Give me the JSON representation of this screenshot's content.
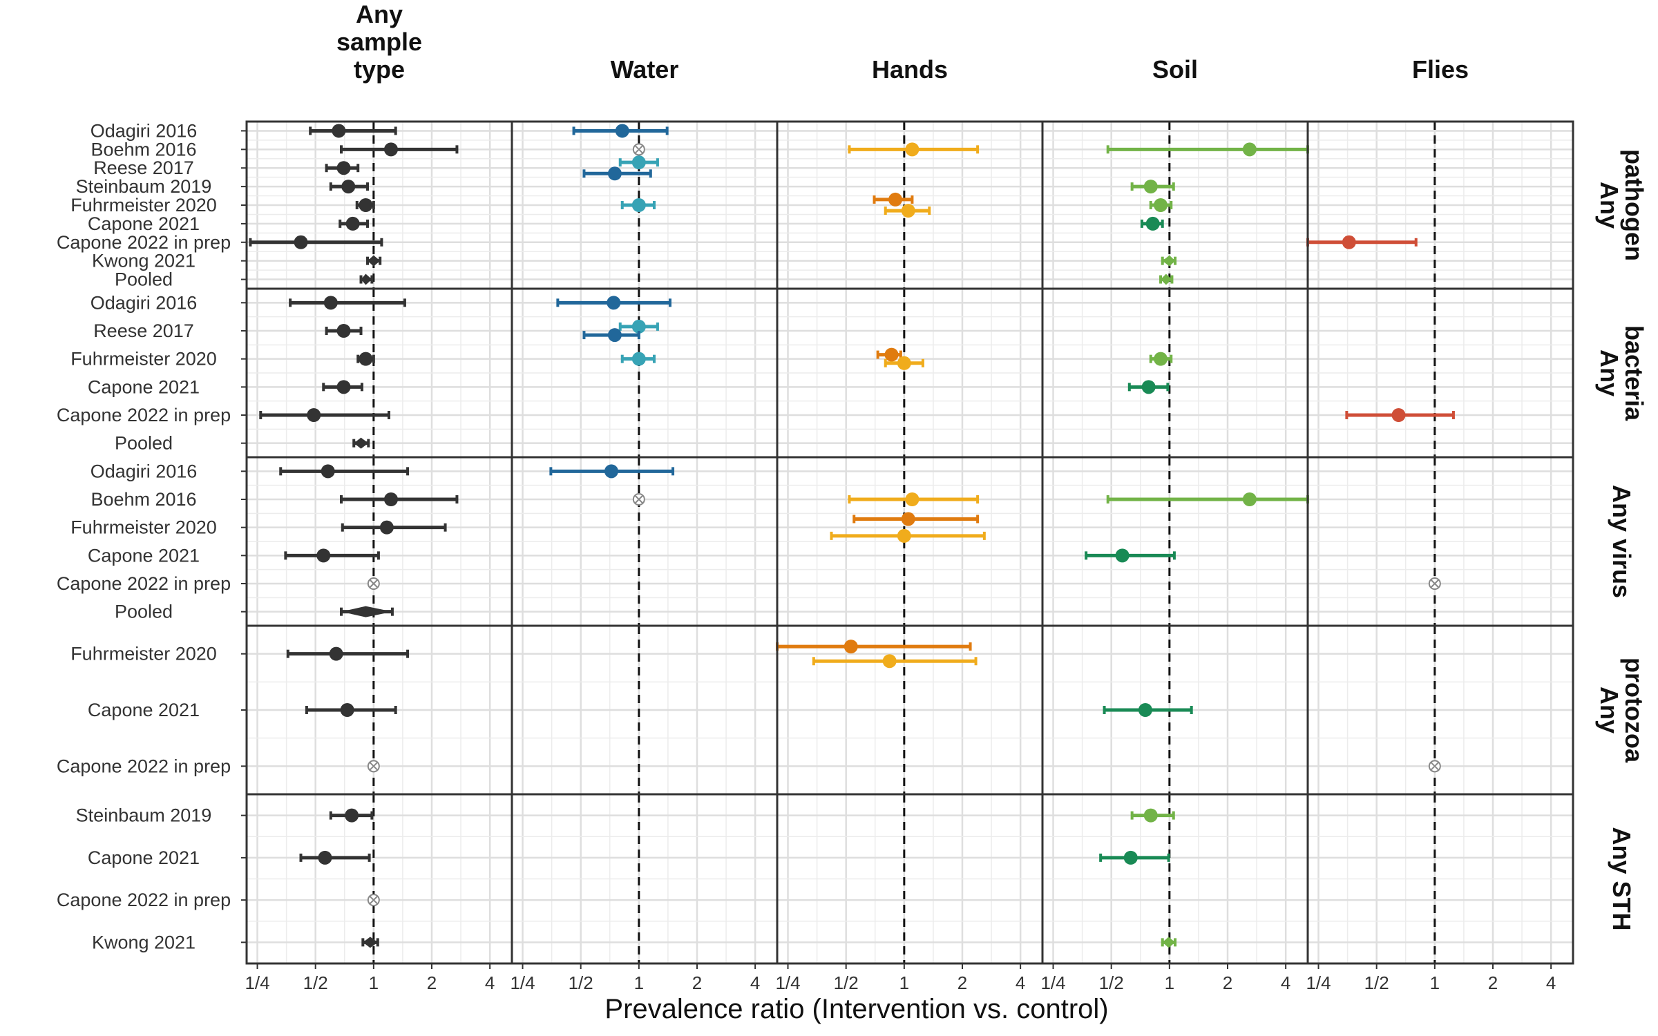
{
  "chart_data": {
    "type": "forest",
    "xlabel": "Prevalence ratio (Intervention vs. control)",
    "x_scale": "log2",
    "xlim": [
      0.22,
      5.2
    ],
    "x_ticks": [
      {
        "value": 0.25,
        "label": "1/4"
      },
      {
        "value": 0.5,
        "label": "1/2"
      },
      {
        "value": 1,
        "label": "1"
      },
      {
        "value": 2,
        "label": "2"
      },
      {
        "value": 4,
        "label": "4"
      }
    ],
    "reference_line": 1,
    "columns": [
      {
        "key": "any",
        "title": [
          "Any",
          "sample",
          "type"
        ]
      },
      {
        "key": "water",
        "title": [
          "Water"
        ]
      },
      {
        "key": "hands",
        "title": [
          "Hands"
        ]
      },
      {
        "key": "soil",
        "title": [
          "Soil"
        ]
      },
      {
        "key": "flies",
        "title": [
          "Flies"
        ]
      }
    ],
    "rows": [
      {
        "title": [
          "Any",
          "pathogen"
        ],
        "studies": [
          "Odagiri 2016",
          "Boehm 2016",
          "Reese 2017",
          "Steinbaum 2019",
          "Fuhrmeister 2020",
          "Capone 2021",
          "Capone 2022 in prep",
          "Kwong 2021",
          "Pooled"
        ],
        "points": [
          {
            "col": "any",
            "study": 0,
            "est": 0.66,
            "lo": 0.47,
            "hi": 1.3,
            "color": "#333333"
          },
          {
            "col": "any",
            "study": 1,
            "est": 1.23,
            "lo": 0.68,
            "hi": 2.7,
            "color": "#333333"
          },
          {
            "col": "any",
            "study": 2,
            "est": 0.7,
            "lo": 0.57,
            "hi": 0.83,
            "color": "#333333"
          },
          {
            "col": "any",
            "study": 3,
            "est": 0.74,
            "lo": 0.6,
            "hi": 0.93,
            "color": "#333333"
          },
          {
            "col": "any",
            "study": 4,
            "est": 0.91,
            "lo": 0.82,
            "hi": 1.0,
            "color": "#333333"
          },
          {
            "col": "any",
            "study": 5,
            "est": 0.78,
            "lo": 0.67,
            "hi": 0.93,
            "color": "#333333"
          },
          {
            "col": "any",
            "study": 6,
            "est": 0.42,
            "lo": 0.23,
            "hi": 1.1,
            "color": "#333333"
          },
          {
            "col": "any",
            "study": 7,
            "est": 1.0,
            "lo": 0.93,
            "hi": 1.08,
            "color": "#333333",
            "shape": "diamond"
          },
          {
            "col": "any",
            "study": 8,
            "est": 0.91,
            "lo": 0.86,
            "hi": 0.98,
            "color": "#333333",
            "shape": "diamond"
          },
          {
            "col": "water",
            "study": 0,
            "est": 0.82,
            "lo": 0.46,
            "hi": 1.4,
            "color": "#21679a"
          },
          {
            "col": "water",
            "study": 1,
            "est": 1.0,
            "color": "#999999",
            "shape": "null"
          },
          {
            "col": "water",
            "study": 2,
            "est": 1.0,
            "lo": 0.8,
            "hi": 1.25,
            "color": "#37a3b5",
            "offset": -0.3
          },
          {
            "col": "water",
            "study": 2,
            "est": 0.75,
            "lo": 0.52,
            "hi": 1.15,
            "color": "#21679a",
            "offset": 0.3
          },
          {
            "col": "water",
            "study": 4,
            "est": 1.0,
            "lo": 0.82,
            "hi": 1.2,
            "color": "#37a3b5"
          },
          {
            "col": "hands",
            "study": 1,
            "est": 1.1,
            "lo": 0.52,
            "hi": 2.4,
            "color": "#f0ac1c"
          },
          {
            "col": "hands",
            "study": 4,
            "est": 0.9,
            "lo": 0.7,
            "hi": 1.1,
            "color": "#e07b0f",
            "offset": -0.3
          },
          {
            "col": "hands",
            "study": 4,
            "est": 1.05,
            "lo": 0.8,
            "hi": 1.35,
            "color": "#f0ac1c",
            "offset": 0.3
          },
          {
            "col": "soil",
            "study": 1,
            "est": 2.6,
            "lo": 0.48,
            "hi": 5.2,
            "color": "#72b347"
          },
          {
            "col": "soil",
            "study": 3,
            "est": 0.8,
            "lo": 0.64,
            "hi": 1.05,
            "color": "#72b347"
          },
          {
            "col": "soil",
            "study": 4,
            "est": 0.9,
            "lo": 0.8,
            "hi": 1.02,
            "color": "#72b347"
          },
          {
            "col": "soil",
            "study": 5,
            "est": 0.82,
            "lo": 0.72,
            "hi": 0.92,
            "color": "#198a55"
          },
          {
            "col": "soil",
            "study": 7,
            "est": 1.0,
            "lo": 0.92,
            "hi": 1.07,
            "color": "#72b347",
            "shape": "diamond"
          },
          {
            "col": "soil",
            "study": 8,
            "est": 0.96,
            "lo": 0.9,
            "hi": 1.03,
            "color": "#72b347",
            "shape": "diamond"
          },
          {
            "col": "flies",
            "study": 6,
            "est": 0.36,
            "lo": 0.22,
            "hi": 0.8,
            "color": "#cf4e37"
          }
        ]
      },
      {
        "title": [
          "Any",
          "bacteria"
        ],
        "studies": [
          "Odagiri 2016",
          "Reese 2017",
          "Fuhrmeister 2020",
          "Capone 2021",
          "Capone 2022 in prep",
          "Pooled"
        ],
        "points": [
          {
            "col": "any",
            "study": 0,
            "est": 0.6,
            "lo": 0.37,
            "hi": 1.45,
            "color": "#333333"
          },
          {
            "col": "any",
            "study": 1,
            "est": 0.7,
            "lo": 0.57,
            "hi": 0.86,
            "color": "#333333"
          },
          {
            "col": "any",
            "study": 2,
            "est": 0.91,
            "lo": 0.83,
            "hi": 1.0,
            "color": "#333333"
          },
          {
            "col": "any",
            "study": 3,
            "est": 0.7,
            "lo": 0.55,
            "hi": 0.87,
            "color": "#333333"
          },
          {
            "col": "any",
            "study": 4,
            "est": 0.49,
            "lo": 0.26,
            "hi": 1.2,
            "color": "#333333"
          },
          {
            "col": "any",
            "study": 5,
            "est": 0.86,
            "lo": 0.79,
            "hi": 0.94,
            "color": "#333333",
            "shape": "diamond"
          },
          {
            "col": "water",
            "study": 0,
            "est": 0.74,
            "lo": 0.38,
            "hi": 1.45,
            "color": "#21679a"
          },
          {
            "col": "water",
            "study": 1,
            "est": 1.0,
            "lo": 0.8,
            "hi": 1.25,
            "color": "#37a3b5",
            "offset": -0.15
          },
          {
            "col": "water",
            "study": 1,
            "est": 0.75,
            "lo": 0.52,
            "hi": 1.0,
            "color": "#21679a",
            "offset": 0.15
          },
          {
            "col": "water",
            "study": 2,
            "est": 1.0,
            "lo": 0.82,
            "hi": 1.2,
            "color": "#37a3b5"
          },
          {
            "col": "hands",
            "study": 2,
            "est": 0.86,
            "lo": 0.73,
            "hi": 0.96,
            "color": "#e07b0f",
            "offset": -0.15
          },
          {
            "col": "hands",
            "study": 2,
            "est": 1.0,
            "lo": 0.8,
            "hi": 1.25,
            "color": "#f0ac1c",
            "offset": 0.15
          },
          {
            "col": "soil",
            "study": 2,
            "est": 0.9,
            "lo": 0.8,
            "hi": 1.02,
            "color": "#72b347"
          },
          {
            "col": "soil",
            "study": 3,
            "est": 0.78,
            "lo": 0.62,
            "hi": 0.98,
            "color": "#198a55"
          },
          {
            "col": "flies",
            "study": 4,
            "est": 0.65,
            "lo": 0.35,
            "hi": 1.25,
            "color": "#cf4e37"
          }
        ]
      },
      {
        "title": [
          "Any virus"
        ],
        "studies": [
          "Odagiri 2016",
          "Boehm 2016",
          "Fuhrmeister 2020",
          "Capone 2021",
          "Capone 2022 in prep",
          "Pooled"
        ],
        "points": [
          {
            "col": "any",
            "study": 0,
            "est": 0.58,
            "lo": 0.33,
            "hi": 1.5,
            "color": "#333333"
          },
          {
            "col": "any",
            "study": 1,
            "est": 1.23,
            "lo": 0.68,
            "hi": 2.7,
            "color": "#333333"
          },
          {
            "col": "any",
            "study": 2,
            "est": 1.17,
            "lo": 0.69,
            "hi": 2.35,
            "color": "#333333"
          },
          {
            "col": "any",
            "study": 3,
            "est": 0.55,
            "lo": 0.35,
            "hi": 1.06,
            "color": "#333333"
          },
          {
            "col": "any",
            "study": 4,
            "est": 1.0,
            "color": "#999999",
            "shape": "null"
          },
          {
            "col": "any",
            "study": 5,
            "est": 0.91,
            "lo": 0.68,
            "hi": 1.25,
            "color": "#333333",
            "shape": "diamond"
          },
          {
            "col": "water",
            "study": 0,
            "est": 0.72,
            "lo": 0.35,
            "hi": 1.5,
            "color": "#21679a"
          },
          {
            "col": "water",
            "study": 1,
            "est": 1.0,
            "color": "#999999",
            "shape": "null"
          },
          {
            "col": "hands",
            "study": 1,
            "est": 1.1,
            "lo": 0.52,
            "hi": 2.4,
            "color": "#f0ac1c"
          },
          {
            "col": "hands",
            "study": 2,
            "est": 1.05,
            "lo": 0.55,
            "hi": 2.4,
            "color": "#e07b0f",
            "offset": -0.3
          },
          {
            "col": "hands",
            "study": 2,
            "est": 1.0,
            "lo": 0.42,
            "hi": 2.6,
            "color": "#f0ac1c",
            "offset": 0.3
          },
          {
            "col": "soil",
            "study": 1,
            "est": 2.6,
            "lo": 0.48,
            "hi": 5.2,
            "color": "#72b347"
          },
          {
            "col": "soil",
            "study": 3,
            "est": 0.57,
            "lo": 0.37,
            "hi": 1.06,
            "color": "#198a55"
          },
          {
            "col": "flies",
            "study": 4,
            "est": 1.0,
            "color": "#999999",
            "shape": "null"
          }
        ]
      },
      {
        "title": [
          "Any",
          "protozoa"
        ],
        "studies": [
          "Fuhrmeister 2020",
          "Capone 2021",
          "Capone 2022 in prep"
        ],
        "points": [
          {
            "col": "any",
            "study": 0,
            "est": 0.64,
            "lo": 0.36,
            "hi": 1.5,
            "color": "#333333"
          },
          {
            "col": "any",
            "study": 1,
            "est": 0.73,
            "lo": 0.45,
            "hi": 1.3,
            "color": "#333333"
          },
          {
            "col": "any",
            "study": 2,
            "est": 1.0,
            "color": "#999999",
            "shape": "null"
          },
          {
            "col": "hands",
            "study": 0,
            "est": 0.53,
            "lo": 0.22,
            "hi": 2.2,
            "color": "#e07b0f",
            "offset": -0.13
          },
          {
            "col": "hands",
            "study": 0,
            "est": 0.84,
            "lo": 0.34,
            "hi": 2.35,
            "color": "#f0ac1c",
            "offset": 0.13
          },
          {
            "col": "soil",
            "study": 1,
            "est": 0.75,
            "lo": 0.46,
            "hi": 1.3,
            "color": "#198a55"
          },
          {
            "col": "flies",
            "study": 2,
            "est": 1.0,
            "color": "#999999",
            "shape": "null"
          }
        ]
      },
      {
        "title": [
          "Any STH"
        ],
        "studies": [
          "Steinbaum 2019",
          "Capone 2021",
          "Capone 2022 in prep",
          "Kwong 2021"
        ],
        "points": [
          {
            "col": "any",
            "study": 0,
            "est": 0.77,
            "lo": 0.6,
            "hi": 0.98,
            "color": "#333333"
          },
          {
            "col": "any",
            "study": 1,
            "est": 0.56,
            "lo": 0.42,
            "hi": 0.95,
            "color": "#333333"
          },
          {
            "col": "any",
            "study": 2,
            "est": 1.0,
            "color": "#999999",
            "shape": "null"
          },
          {
            "col": "any",
            "study": 3,
            "est": 0.96,
            "lo": 0.88,
            "hi": 1.05,
            "color": "#333333",
            "shape": "diamond"
          },
          {
            "col": "soil",
            "study": 0,
            "est": 0.8,
            "lo": 0.64,
            "hi": 1.05,
            "color": "#72b347"
          },
          {
            "col": "soil",
            "study": 1,
            "est": 0.63,
            "lo": 0.44,
            "hi": 0.99,
            "color": "#198a55"
          },
          {
            "col": "soil",
            "study": 3,
            "est": 0.99,
            "lo": 0.92,
            "hi": 1.07,
            "color": "#72b347",
            "shape": "diamond"
          }
        ]
      }
    ]
  }
}
